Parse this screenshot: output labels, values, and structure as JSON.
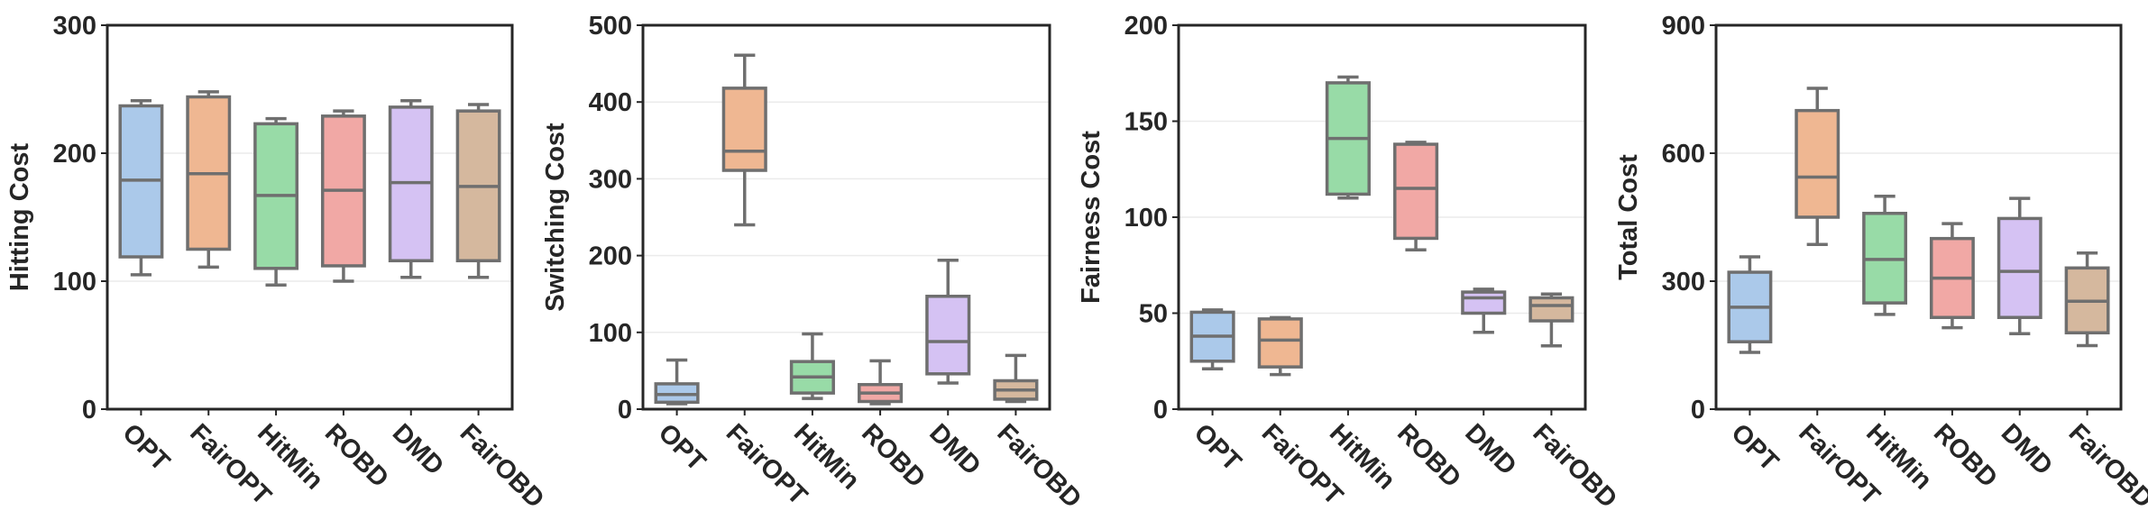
{
  "chart_data": [
    {
      "type": "box",
      "ylabel": "Hitting Cost",
      "ylim": [
        0,
        300
      ],
      "yticks": [
        "0",
        "100",
        "200",
        "300"
      ],
      "grid": "horizontal",
      "categories": [
        "OPT",
        "FairOPT",
        "HitMin",
        "ROBD",
        "DMD",
        "FairOBD"
      ],
      "boxes": [
        {
          "whislo": 105,
          "q1": 119,
          "med": 179,
          "q3": 237,
          "whishi": 241
        },
        {
          "whislo": 111,
          "q1": 125,
          "med": 184,
          "q3": 244,
          "whishi": 248
        },
        {
          "whislo": 97,
          "q1": 110,
          "med": 167,
          "q3": 223,
          "whishi": 227
        },
        {
          "whislo": 100,
          "q1": 112,
          "med": 171,
          "q3": 229,
          "whishi": 233
        },
        {
          "whislo": 103,
          "q1": 116,
          "med": 177,
          "q3": 236,
          "whishi": 241
        },
        {
          "whislo": 103,
          "q1": 116,
          "med": 174,
          "q3": 233,
          "whishi": 238
        }
      ]
    },
    {
      "type": "box",
      "ylabel": "Switching Cost",
      "ylim": [
        0,
        500
      ],
      "yticks": [
        "0",
        "100",
        "200",
        "300",
        "400",
        "500"
      ],
      "grid": "horizontal",
      "categories": [
        "OPT",
        "FairOPT",
        "HitMin",
        "ROBD",
        "DMD",
        "FairOBD"
      ],
      "boxes": [
        {
          "whislo": 7,
          "q1": 9,
          "med": 19,
          "q3": 33,
          "whishi": 64
        },
        {
          "whislo": 240,
          "q1": 311,
          "med": 336,
          "q3": 418,
          "whishi": 461
        },
        {
          "whislo": 14,
          "q1": 21,
          "med": 42,
          "q3": 62,
          "whishi": 98
        },
        {
          "whislo": 7,
          "q1": 10,
          "med": 21,
          "q3": 32,
          "whishi": 63
        },
        {
          "whislo": 34,
          "q1": 46,
          "med": 88,
          "q3": 147,
          "whishi": 194
        },
        {
          "whislo": 10,
          "q1": 13,
          "med": 25,
          "q3": 37,
          "whishi": 70
        }
      ]
    },
    {
      "type": "box",
      "ylabel": "Fairness Cost",
      "ylim": [
        0,
        200
      ],
      "yticks": [
        "0",
        "50",
        "100",
        "150",
        "200"
      ],
      "grid": "horizontal",
      "categories": [
        "OPT",
        "FairOPT",
        "HitMin",
        "ROBD",
        "DMD",
        "FairOBD"
      ],
      "boxes": [
        {
          "whislo": 21,
          "q1": 25,
          "med": 38,
          "q3": 50.5,
          "whishi": 51.7
        },
        {
          "whislo": 18,
          "q1": 22,
          "med": 36,
          "q3": 47,
          "whishi": 47.7
        },
        {
          "whislo": 110,
          "q1": 112,
          "med": 141,
          "q3": 170,
          "whishi": 173
        },
        {
          "whislo": 83,
          "q1": 89,
          "med": 115,
          "q3": 138,
          "whishi": 139
        },
        {
          "whislo": 40,
          "q1": 50,
          "med": 58,
          "q3": 61,
          "whishi": 62.5
        },
        {
          "whislo": 33,
          "q1": 46,
          "med": 54,
          "q3": 58,
          "whishi": 60
        }
      ]
    },
    {
      "type": "box",
      "ylabel": "Total Cost",
      "ylim": [
        0,
        900
      ],
      "yticks": [
        "0",
        "300",
        "600",
        "900"
      ],
      "grid": "horizontal",
      "categories": [
        "OPT",
        "FairOPT",
        "HitMin",
        "ROBD",
        "DMD",
        "FairOBD"
      ],
      "boxes": [
        {
          "whislo": 133,
          "q1": 158,
          "med": 239,
          "q3": 321,
          "whishi": 357
        },
        {
          "whislo": 386,
          "q1": 450,
          "med": 544,
          "q3": 700,
          "whishi": 752
        },
        {
          "whislo": 222,
          "q1": 249,
          "med": 351,
          "q3": 459,
          "whishi": 499
        },
        {
          "whislo": 191,
          "q1": 215,
          "med": 307,
          "q3": 400,
          "whishi": 435
        },
        {
          "whislo": 177,
          "q1": 215,
          "med": 323,
          "q3": 447,
          "whishi": 494
        },
        {
          "whislo": 149,
          "q1": 179,
          "med": 253,
          "q3": 331,
          "whishi": 366
        }
      ]
    }
  ],
  "colors": {
    "boxes": [
      "#abc9ea",
      "#efb792",
      "#98dba7",
      "#f1a8a5",
      "#d5c2f3",
      "#d5b89e"
    ],
    "box_edge": "#6f6f6f",
    "axis": "#262626",
    "grid": "#ebebeb"
  }
}
